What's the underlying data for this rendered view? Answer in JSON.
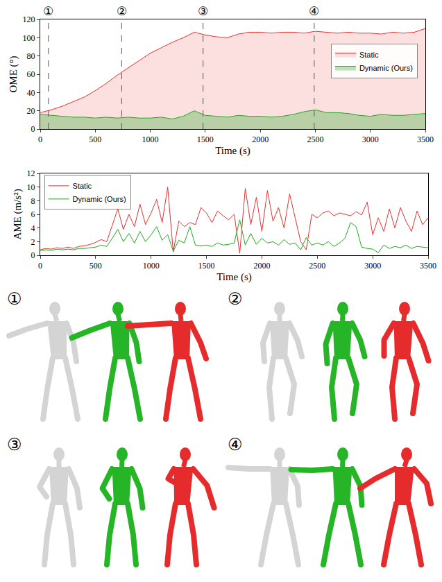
{
  "chart_data": [
    {
      "type": "area",
      "xlabel": "Time (s)",
      "ylabel": "OME (°)",
      "xlim": [
        0,
        3500
      ],
      "xticks": [
        0,
        500,
        1000,
        1500,
        2000,
        2500,
        3000,
        3500
      ],
      "ylim": [
        0,
        120
      ],
      "yticks": [
        0,
        20,
        40,
        60,
        80,
        100,
        120
      ],
      "grid": false,
      "legend": "right",
      "annotations": [
        {
          "x": 75,
          "text": "①"
        },
        {
          "x": 740,
          "text": "②"
        },
        {
          "x": 1480,
          "text": "③"
        },
        {
          "x": 2490,
          "text": "④"
        }
      ],
      "x": [
        0,
        100,
        200,
        300,
        400,
        500,
        600,
        700,
        800,
        900,
        1000,
        1100,
        1200,
        1300,
        1400,
        1500,
        1600,
        1700,
        1800,
        1900,
        2000,
        2100,
        2200,
        2300,
        2400,
        2500,
        2600,
        2700,
        2800,
        2900,
        3000,
        3100,
        3200,
        3300,
        3400,
        3500
      ],
      "series": [
        {
          "name": "Static",
          "color": "#e8302f",
          "values": [
            18,
            21,
            25,
            30,
            35,
            42,
            50,
            59,
            67,
            75,
            83,
            89,
            95,
            100,
            106,
            103,
            101,
            100,
            104,
            106,
            106,
            105,
            106,
            106,
            105,
            107,
            106,
            105,
            106,
            105,
            105,
            104,
            106,
            105,
            106,
            110
          ]
        },
        {
          "name": "Dynamic (Ours)",
          "color": "#1faa1f",
          "values": [
            16,
            15,
            14,
            13,
            13,
            12,
            13,
            12,
            13,
            12,
            12,
            13,
            11,
            14,
            20,
            15,
            14,
            13,
            15,
            14,
            14,
            13,
            14,
            16,
            19,
            21,
            18,
            18,
            17,
            15,
            14,
            16,
            15,
            15,
            16,
            17
          ]
        }
      ]
    },
    {
      "type": "line",
      "xlabel": "Time (s)",
      "ylabel": "AME (m/s²)",
      "xlim": [
        0,
        3500
      ],
      "xticks": [
        0,
        500,
        1000,
        1500,
        2000,
        2500,
        3000,
        3500
      ],
      "ylim": [
        0,
        12
      ],
      "yticks": [
        0,
        2,
        4,
        6,
        8,
        10,
        12
      ],
      "grid": false,
      "legend": "top left",
      "x": [
        0,
        50,
        100,
        150,
        200,
        250,
        300,
        350,
        400,
        450,
        500,
        550,
        600,
        650,
        700,
        750,
        800,
        850,
        900,
        950,
        1000,
        1050,
        1100,
        1150,
        1200,
        1250,
        1300,
        1350,
        1400,
        1450,
        1500,
        1550,
        1600,
        1650,
        1700,
        1750,
        1800,
        1850,
        1900,
        1950,
        2000,
        2050,
        2100,
        2150,
        2200,
        2250,
        2300,
        2350,
        2400,
        2450,
        2500,
        2550,
        2600,
        2650,
        2700,
        2750,
        2800,
        2850,
        2900,
        2950,
        3000,
        3050,
        3100,
        3150,
        3200,
        3250,
        3300,
        3350,
        3400,
        3450,
        3500
      ],
      "series": [
        {
          "name": "Static",
          "color": "#e8302f",
          "values": [
            0.8,
            1.0,
            0.9,
            1.1,
            1.0,
            1.2,
            1.0,
            1.3,
            1.4,
            1.6,
            1.9,
            2.3,
            2.0,
            4.5,
            6.8,
            3.8,
            6.0,
            4.2,
            7.5,
            4.5,
            6.2,
            8.2,
            4.8,
            10.0,
            0.5,
            5.0,
            4.2,
            4.8,
            4.5,
            7.0,
            6.2,
            4.8,
            6.5,
            5.8,
            5.2,
            6.0,
            0.3,
            9.8,
            4.5,
            8.5,
            3.5,
            9.5,
            5.0,
            7.0,
            4.0,
            9.0,
            5.5,
            2.0,
            0.8,
            6.0,
            5.5,
            6.2,
            6.5,
            5.8,
            6.2,
            6.0,
            5.8,
            6.4,
            5.9,
            7.8,
            3.0,
            5.5,
            3.5,
            6.8,
            4.0,
            7.0,
            5.0,
            3.5,
            6.5,
            4.5,
            5.5
          ]
        },
        {
          "name": "Dynamic (Ours)",
          "color": "#1faa1f",
          "values": [
            0.7,
            0.8,
            0.7,
            0.9,
            0.8,
            0.9,
            0.8,
            1.0,
            1.0,
            1.1,
            1.2,
            1.5,
            1.3,
            2.5,
            3.8,
            2.0,
            3.2,
            1.8,
            3.5,
            2.0,
            3.0,
            4.2,
            2.2,
            3.0,
            0.6,
            2.2,
            1.8,
            4.2,
            1.5,
            1.4,
            1.5,
            1.3,
            1.8,
            1.5,
            1.6,
            1.8,
            5.2,
            1.5,
            3.2,
            1.6,
            2.5,
            1.8,
            2.0,
            1.5,
            2.3,
            1.6,
            1.8,
            0.8,
            2.6,
            1.5,
            1.8,
            1.5,
            2.0,
            1.3,
            1.8,
            2.5,
            4.8,
            4.2,
            1.2,
            1.0,
            0.9,
            0.4,
            1.5,
            1.0,
            1.3,
            1.1,
            1.5,
            1.0,
            1.3,
            1.2,
            1.1
          ]
        }
      ]
    }
  ],
  "figure_panels": [
    "①",
    "②",
    "③",
    "④"
  ]
}
